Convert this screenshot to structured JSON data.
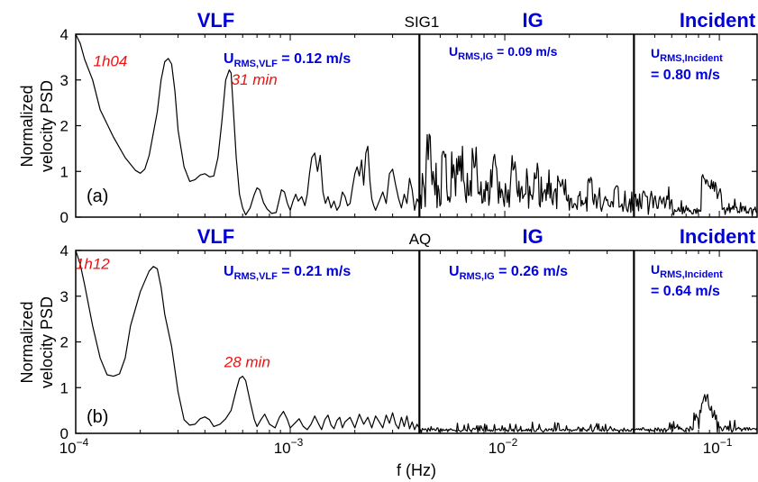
{
  "chart_data": {
    "type": "line",
    "xlabel": "f (Hz)",
    "ylabel_line1": "Normalized",
    "ylabel_line2": "velocity PSD",
    "x_scale": "log",
    "xlim": [
      0.0001,
      0.15
    ],
    "ylim": [
      0,
      4
    ],
    "x_ticks": [
      {
        "value": 0.0001,
        "base": "10",
        "exp": "−4"
      },
      {
        "value": 0.001,
        "base": "10",
        "exp": "−3"
      },
      {
        "value": 0.01,
        "base": "10",
        "exp": "−2"
      },
      {
        "value": 0.1,
        "base": "10",
        "exp": "−1"
      }
    ],
    "y_ticks": [
      "0",
      "1",
      "2",
      "3",
      "4"
    ],
    "band_boundaries": [
      0.004,
      0.04
    ],
    "band_labels": [
      {
        "text": "VLF",
        "x": 0.00045
      },
      {
        "text": "IG",
        "x": 0.0135
      },
      {
        "text": "Incident",
        "x": 0.098
      }
    ],
    "panels": [
      {
        "id": "a",
        "tag": "(a)",
        "station": "SIG1",
        "urms": {
          "vlf": {
            "u": "U",
            "sub": "RMS,VLF",
            "rest": " = 0.12 m/s"
          },
          "ig": {
            "u": "U",
            "sub": "RMS,IG",
            "rest": " = 0.09 m/s"
          },
          "incident_line1": {
            "u": "U",
            "sub": "RMS,Incident"
          },
          "incident_line2": "= 0.80 m/s"
        },
        "annotations": [
          {
            "text": "1h04",
            "x": 0.000145,
            "y": 3.3
          },
          {
            "text": "31 min",
            "x": 0.00068,
            "y": 2.9
          }
        ],
        "points": [
          [
            0.0001,
            4.0
          ],
          [
            0.000105,
            3.8
          ],
          [
            0.00011,
            3.45
          ],
          [
            0.00012,
            3.0
          ],
          [
            0.00013,
            2.35
          ],
          [
            0.00015,
            1.75
          ],
          [
            0.00017,
            1.3
          ],
          [
            0.00019,
            1.02
          ],
          [
            0.0002,
            0.96
          ],
          [
            0.00021,
            1.05
          ],
          [
            0.00022,
            1.35
          ],
          [
            0.00024,
            2.3
          ],
          [
            0.00025,
            3.0
          ],
          [
            0.00026,
            3.4
          ],
          [
            0.00027,
            3.47
          ],
          [
            0.00028,
            3.35
          ],
          [
            0.00029,
            2.75
          ],
          [
            0.0003,
            1.9
          ],
          [
            0.00032,
            1.1
          ],
          [
            0.00034,
            0.78
          ],
          [
            0.00036,
            0.82
          ],
          [
            0.00038,
            0.92
          ],
          [
            0.0004,
            0.95
          ],
          [
            0.00042,
            0.88
          ],
          [
            0.00044,
            0.9
          ],
          [
            0.00046,
            1.3
          ],
          [
            0.00048,
            2.1
          ],
          [
            0.0005,
            3.0
          ],
          [
            0.00052,
            3.22
          ],
          [
            0.00053,
            3.15
          ],
          [
            0.00054,
            2.55
          ],
          [
            0.00056,
            1.3
          ],
          [
            0.00058,
            0.5
          ],
          [
            0.0006,
            0.2
          ],
          [
            0.00062,
            0.05
          ],
          [
            0.00065,
            0.2
          ],
          [
            0.00068,
            0.5
          ],
          [
            0.0007,
            0.64
          ],
          [
            0.00072,
            0.6
          ],
          [
            0.00075,
            0.32
          ],
          [
            0.00078,
            0.18
          ],
          [
            0.00082,
            0.08
          ],
          [
            0.00086,
            0.1
          ],
          [
            0.00089,
            0.4
          ],
          [
            0.00091,
            0.6
          ],
          [
            0.00094,
            0.55
          ],
          [
            0.00097,
            0.3
          ],
          [
            0.001,
            0.15
          ],
          [
            0.00103,
            0.35
          ],
          [
            0.00106,
            0.5
          ],
          [
            0.00109,
            0.35
          ],
          [
            0.00113,
            0.45
          ],
          [
            0.00117,
            0.25
          ],
          [
            0.0012,
            0.5
          ],
          [
            0.00123,
            0.95
          ],
          [
            0.00126,
            1.3
          ],
          [
            0.0013,
            1.4
          ],
          [
            0.00134,
            1.0
          ],
          [
            0.00138,
            1.35
          ],
          [
            0.00142,
            0.55
          ],
          [
            0.00146,
            0.3
          ],
          [
            0.0015,
            0.45
          ],
          [
            0.00155,
            0.2
          ],
          [
            0.0016,
            0.35
          ],
          [
            0.00165,
            0.15
          ],
          [
            0.0017,
            0.25
          ],
          [
            0.00175,
            0.55
          ],
          [
            0.0018,
            0.45
          ],
          [
            0.00185,
            0.25
          ],
          [
            0.0019,
            0.3
          ],
          [
            0.00195,
            0.65
          ],
          [
            0.002,
            0.95
          ],
          [
            0.00205,
            1.1
          ],
          [
            0.0021,
            0.9
          ],
          [
            0.00215,
            1.25
          ],
          [
            0.0022,
            0.7
          ],
          [
            0.00225,
            1.4
          ],
          [
            0.0023,
            1.55
          ],
          [
            0.00235,
            0.8
          ],
          [
            0.0024,
            0.4
          ],
          [
            0.00245,
            0.25
          ],
          [
            0.0025,
            0.15
          ],
          [
            0.0026,
            0.35
          ],
          [
            0.0027,
            0.55
          ],
          [
            0.0028,
            0.3
          ],
          [
            0.0029,
            0.95
          ],
          [
            0.003,
            1.05
          ],
          [
            0.0031,
            0.7
          ],
          [
            0.0032,
            0.4
          ],
          [
            0.0033,
            0.2
          ],
          [
            0.0034,
            0.5
          ],
          [
            0.0035,
            0.3
          ],
          [
            0.0036,
            0.85
          ],
          [
            0.0037,
            0.6
          ],
          [
            0.0038,
            0.15
          ],
          [
            0.0039,
            0.4
          ],
          [
            0.004,
            0.3
          ]
        ],
        "noise": [
          {
            "f1": 0.004,
            "f2": 0.008,
            "base": 0.55,
            "amp": 0.65,
            "peaks": [
              [
                0.0044,
                1.85
              ],
              [
                0.0052,
                1.5
              ],
              [
                0.0061,
                1.4
              ],
              [
                0.0072,
                1.55
              ]
            ]
          },
          {
            "f1": 0.008,
            "f2": 0.02,
            "base": 0.4,
            "amp": 0.5,
            "peaks": [
              [
                0.009,
                1.4
              ],
              [
                0.011,
                1.35
              ],
              [
                0.014,
                1.2
              ],
              [
                0.018,
                1.05
              ]
            ]
          },
          {
            "f1": 0.02,
            "f2": 0.06,
            "base": 0.25,
            "amp": 0.3,
            "peaks": [
              [
                0.025,
                0.9
              ],
              [
                0.033,
                0.85
              ],
              [
                0.045,
                0.6
              ]
            ]
          },
          {
            "f1": 0.06,
            "f2": 0.15,
            "base": 0.12,
            "amp": 0.15,
            "peaks": [
              [
                0.085,
                0.95
              ],
              [
                0.09,
                1.0
              ],
              [
                0.095,
                0.85
              ],
              [
                0.1,
                0.65
              ]
            ]
          }
        ]
      },
      {
        "id": "b",
        "tag": "(b)",
        "station": "AQ",
        "urms": {
          "vlf": {
            "u": "U",
            "sub": "RMS,VLF",
            "rest": " = 0.21 m/s"
          },
          "ig": {
            "u": "U",
            "sub": "RMS,IG",
            "rest": " = 0.26 m/s"
          },
          "incident_line1": {
            "u": "U",
            "sub": "RMS,Incident"
          },
          "incident_line2": "= 0.64 m/s"
        },
        "annotations": [
          {
            "text": "1h12",
            "x": 0.00012,
            "y": 3.6
          },
          {
            "text": "28 min",
            "x": 0.00063,
            "y": 1.45
          }
        ],
        "points": [
          [
            0.0001,
            4.0
          ],
          [
            0.000105,
            3.7
          ],
          [
            0.00011,
            3.25
          ],
          [
            0.00012,
            2.35
          ],
          [
            0.00013,
            1.65
          ],
          [
            0.00014,
            1.28
          ],
          [
            0.00015,
            1.25
          ],
          [
            0.00016,
            1.3
          ],
          [
            0.00017,
            1.65
          ],
          [
            0.00018,
            2.35
          ],
          [
            0.0002,
            3.1
          ],
          [
            0.00022,
            3.55
          ],
          [
            0.00023,
            3.65
          ],
          [
            0.00024,
            3.6
          ],
          [
            0.00025,
            3.2
          ],
          [
            0.00026,
            2.6
          ],
          [
            0.00028,
            1.9
          ],
          [
            0.0003,
            0.9
          ],
          [
            0.00032,
            0.3
          ],
          [
            0.00034,
            0.18
          ],
          [
            0.00036,
            0.2
          ],
          [
            0.00038,
            0.32
          ],
          [
            0.0004,
            0.36
          ],
          [
            0.00042,
            0.3
          ],
          [
            0.00044,
            0.15
          ],
          [
            0.00047,
            0.2
          ],
          [
            0.0005,
            0.32
          ],
          [
            0.00053,
            0.5
          ],
          [
            0.00056,
            0.95
          ],
          [
            0.00058,
            1.2
          ],
          [
            0.0006,
            1.25
          ],
          [
            0.00062,
            1.15
          ],
          [
            0.00065,
            0.7
          ],
          [
            0.00068,
            0.3
          ],
          [
            0.0007,
            0.15
          ],
          [
            0.00073,
            0.3
          ],
          [
            0.00076,
            0.42
          ],
          [
            0.0008,
            0.2
          ],
          [
            0.00085,
            0.12
          ],
          [
            0.00089,
            0.35
          ],
          [
            0.00093,
            0.48
          ],
          [
            0.00097,
            0.3
          ],
          [
            0.001,
            0.12
          ],
          [
            0.00105,
            0.22
          ],
          [
            0.0011,
            0.32
          ],
          [
            0.00115,
            0.15
          ],
          [
            0.0012,
            0.08
          ],
          [
            0.00125,
            0.2
          ],
          [
            0.0013,
            0.38
          ],
          [
            0.00135,
            0.22
          ],
          [
            0.0014,
            0.08
          ],
          [
            0.00145,
            0.3
          ],
          [
            0.0015,
            0.4
          ],
          [
            0.00155,
            0.18
          ],
          [
            0.0016,
            0.1
          ],
          [
            0.00165,
            0.28
          ],
          [
            0.0017,
            0.35
          ],
          [
            0.00175,
            0.12
          ],
          [
            0.0018,
            0.25
          ],
          [
            0.0019,
            0.35
          ],
          [
            0.002,
            0.12
          ],
          [
            0.0021,
            0.42
          ],
          [
            0.0022,
            0.2
          ],
          [
            0.0023,
            0.35
          ],
          [
            0.0024,
            0.12
          ],
          [
            0.0025,
            0.38
          ],
          [
            0.0026,
            0.25
          ],
          [
            0.0027,
            0.12
          ],
          [
            0.0028,
            0.4
          ],
          [
            0.0029,
            0.22
          ],
          [
            0.003,
            0.45
          ],
          [
            0.0031,
            0.2
          ],
          [
            0.0032,
            0.1
          ],
          [
            0.0033,
            0.35
          ],
          [
            0.0034,
            0.15
          ],
          [
            0.0035,
            0.38
          ],
          [
            0.0036,
            0.1
          ],
          [
            0.0037,
            0.25
          ],
          [
            0.0038,
            0.08
          ],
          [
            0.0039,
            0.2
          ],
          [
            0.004,
            0.1
          ]
        ],
        "noise": [
          {
            "f1": 0.004,
            "f2": 0.06,
            "base": 0.05,
            "amp": 0.12,
            "peaks": []
          },
          {
            "f1": 0.06,
            "f2": 0.15,
            "base": 0.06,
            "amp": 0.15,
            "peaks": [
              [
                0.078,
                0.45
              ],
              [
                0.083,
                0.7
              ],
              [
                0.086,
                0.98
              ],
              [
                0.09,
                0.8
              ],
              [
                0.095,
                0.5
              ]
            ]
          }
        ]
      }
    ]
  }
}
